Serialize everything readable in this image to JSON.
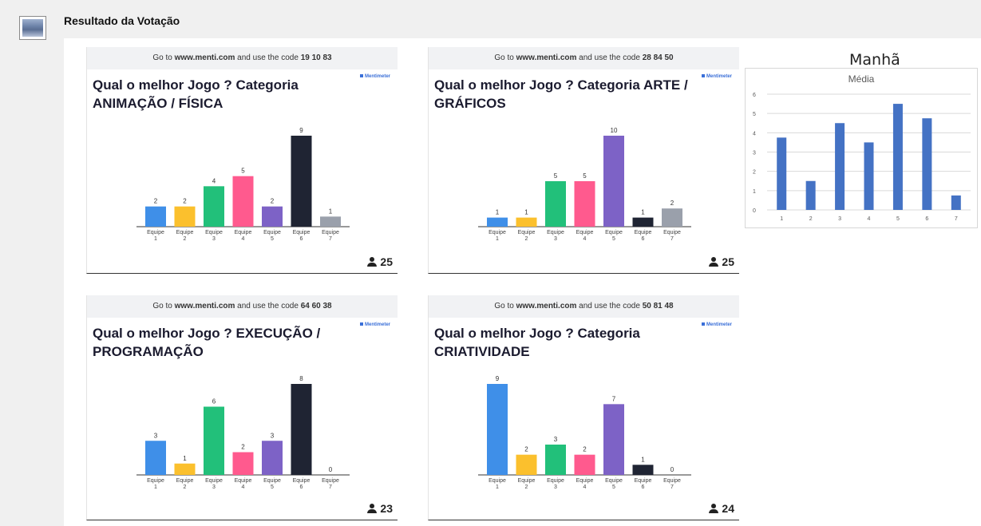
{
  "post": {
    "title": "Resultado da Votação"
  },
  "slides": [
    {
      "header_prefix": "Go to ",
      "site": "www.menti.com",
      "header_mid": " and use the code ",
      "code": "19 10 83",
      "title": "Qual o melhor Jogo ? Categoria ANIMAÇÃO / FÍSICA",
      "brand": "Mentimeter",
      "participants": "25",
      "chart_data": {
        "type": "bar",
        "categories": [
          "Equipe 1",
          "Equipe 2",
          "Equipe 3",
          "Equipe 4",
          "Equipe 5",
          "Equipe 6",
          "Equipe 7"
        ],
        "values": [
          2,
          2,
          4,
          5,
          2,
          9,
          1
        ]
      }
    },
    {
      "header_prefix": "Go to ",
      "site": "www.menti.com",
      "header_mid": " and use the code ",
      "code": "28 84 50",
      "title": "Qual o melhor Jogo ? Categoria ARTE / GRÁFICOS",
      "brand": "Mentimeter",
      "participants": "25",
      "chart_data": {
        "type": "bar",
        "categories": [
          "Equipe 1",
          "Equipe 2",
          "Equipe 3",
          "Equipe 4",
          "Equipe 5",
          "Equipe 6",
          "Equipe 7"
        ],
        "values": [
          1,
          1,
          5,
          5,
          10,
          1,
          2
        ]
      }
    },
    {
      "header_prefix": "Go to ",
      "site": "www.menti.com",
      "header_mid": " and use the code ",
      "code": "64 60 38",
      "title": "Qual o melhor Jogo ? EXECUÇÃO / PROGRAMAÇÃO",
      "brand": "Mentimeter",
      "participants": "23",
      "chart_data": {
        "type": "bar",
        "categories": [
          "Equipe 1",
          "Equipe 2",
          "Equipe 3",
          "Equipe 4",
          "Equipe 5",
          "Equipe 6",
          "Equipe 7"
        ],
        "values": [
          3,
          1,
          6,
          2,
          3,
          8,
          0
        ]
      }
    },
    {
      "header_prefix": "Go to ",
      "site": "www.menti.com",
      "header_mid": " and use the code ",
      "code": "50 81 48",
      "title": "Qual o melhor Jogo ? Categoria CRIATIVIDADE",
      "brand": "Mentimeter",
      "participants": "24",
      "chart_data": {
        "type": "bar",
        "categories": [
          "Equipe 1",
          "Equipe 2",
          "Equipe 3",
          "Equipe 4",
          "Equipe 5",
          "Equipe 6",
          "Equipe 7"
        ],
        "values": [
          9,
          2,
          3,
          2,
          7,
          1,
          0
        ]
      }
    }
  ],
  "bar_colors": [
    "#3f8fe8",
    "#fbc02d",
    "#22c07a",
    "#ff5a8e",
    "#7d62c6",
    "#1f2433",
    "#9aa0ab"
  ],
  "media": {
    "label": "Manhã",
    "chart_data": {
      "type": "bar",
      "title": "Média",
      "categories": [
        "1",
        "2",
        "3",
        "4",
        "5",
        "6",
        "7"
      ],
      "values": [
        3.75,
        1.5,
        4.5,
        3.5,
        5.5,
        4.75,
        0.75
      ],
      "ylim": [
        0,
        6
      ],
      "yticks": [
        "0",
        "1",
        "2",
        "3",
        "4",
        "5",
        "6"
      ],
      "grid": true,
      "color": "#4472c4"
    }
  }
}
